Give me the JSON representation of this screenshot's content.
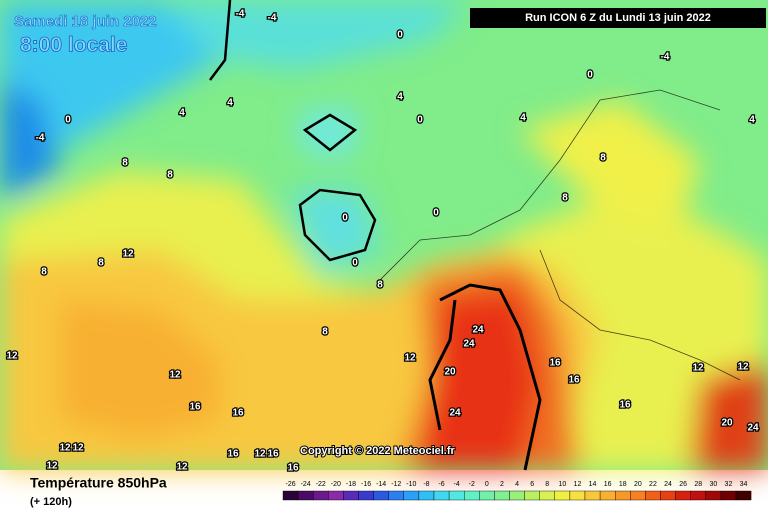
{
  "header": {
    "date": "Samedi 18 juin 2022",
    "time": "8:00 locale",
    "run": "Run ICON 6 Z du Lundi 13 juin 2022"
  },
  "footer": {
    "title": "Température 850hPa",
    "lead": "(+ 120h)",
    "copyright": "Copyright © 2022 Meteociel.fr"
  },
  "legend": {
    "values": [
      -26,
      -24,
      -22,
      -20,
      -18,
      -16,
      -14,
      -12,
      -10,
      -8,
      -6,
      -4,
      -2,
      0,
      2,
      4,
      6,
      8,
      10,
      12,
      14,
      16,
      18,
      20,
      22,
      24,
      26,
      28,
      30,
      32,
      34
    ],
    "colors": [
      "#2a0436",
      "#4a0a66",
      "#6a1a8a",
      "#8a2aa8",
      "#5a2ab8",
      "#3a3ad0",
      "#2a5ae0",
      "#2a80f0",
      "#2aa0f8",
      "#30c0f8",
      "#40d8f0",
      "#50e8e0",
      "#60f0c8",
      "#70f0a8",
      "#80f090",
      "#98f078",
      "#b8f060",
      "#d8f050",
      "#f0f040",
      "#f8e040",
      "#f8c838",
      "#f8b030",
      "#f89828",
      "#f88020",
      "#f06018",
      "#e84010",
      "#d82010",
      "#c01010",
      "#a00808",
      "#700000",
      "#400000"
    ]
  },
  "map": {
    "contour_labels": [
      -4,
      -4,
      0,
      0,
      -4,
      0,
      -4,
      4,
      4,
      4,
      4,
      0,
      8,
      8,
      8,
      8,
      12,
      8,
      8,
      8,
      8,
      24,
      24,
      20,
      24,
      12,
      12,
      16,
      16,
      16,
      12,
      16,
      16,
      12,
      16,
      16,
      16,
      20,
      24,
      12,
      12,
      12,
      12,
      12,
      12,
      4,
      0,
      0,
      0
    ]
  }
}
